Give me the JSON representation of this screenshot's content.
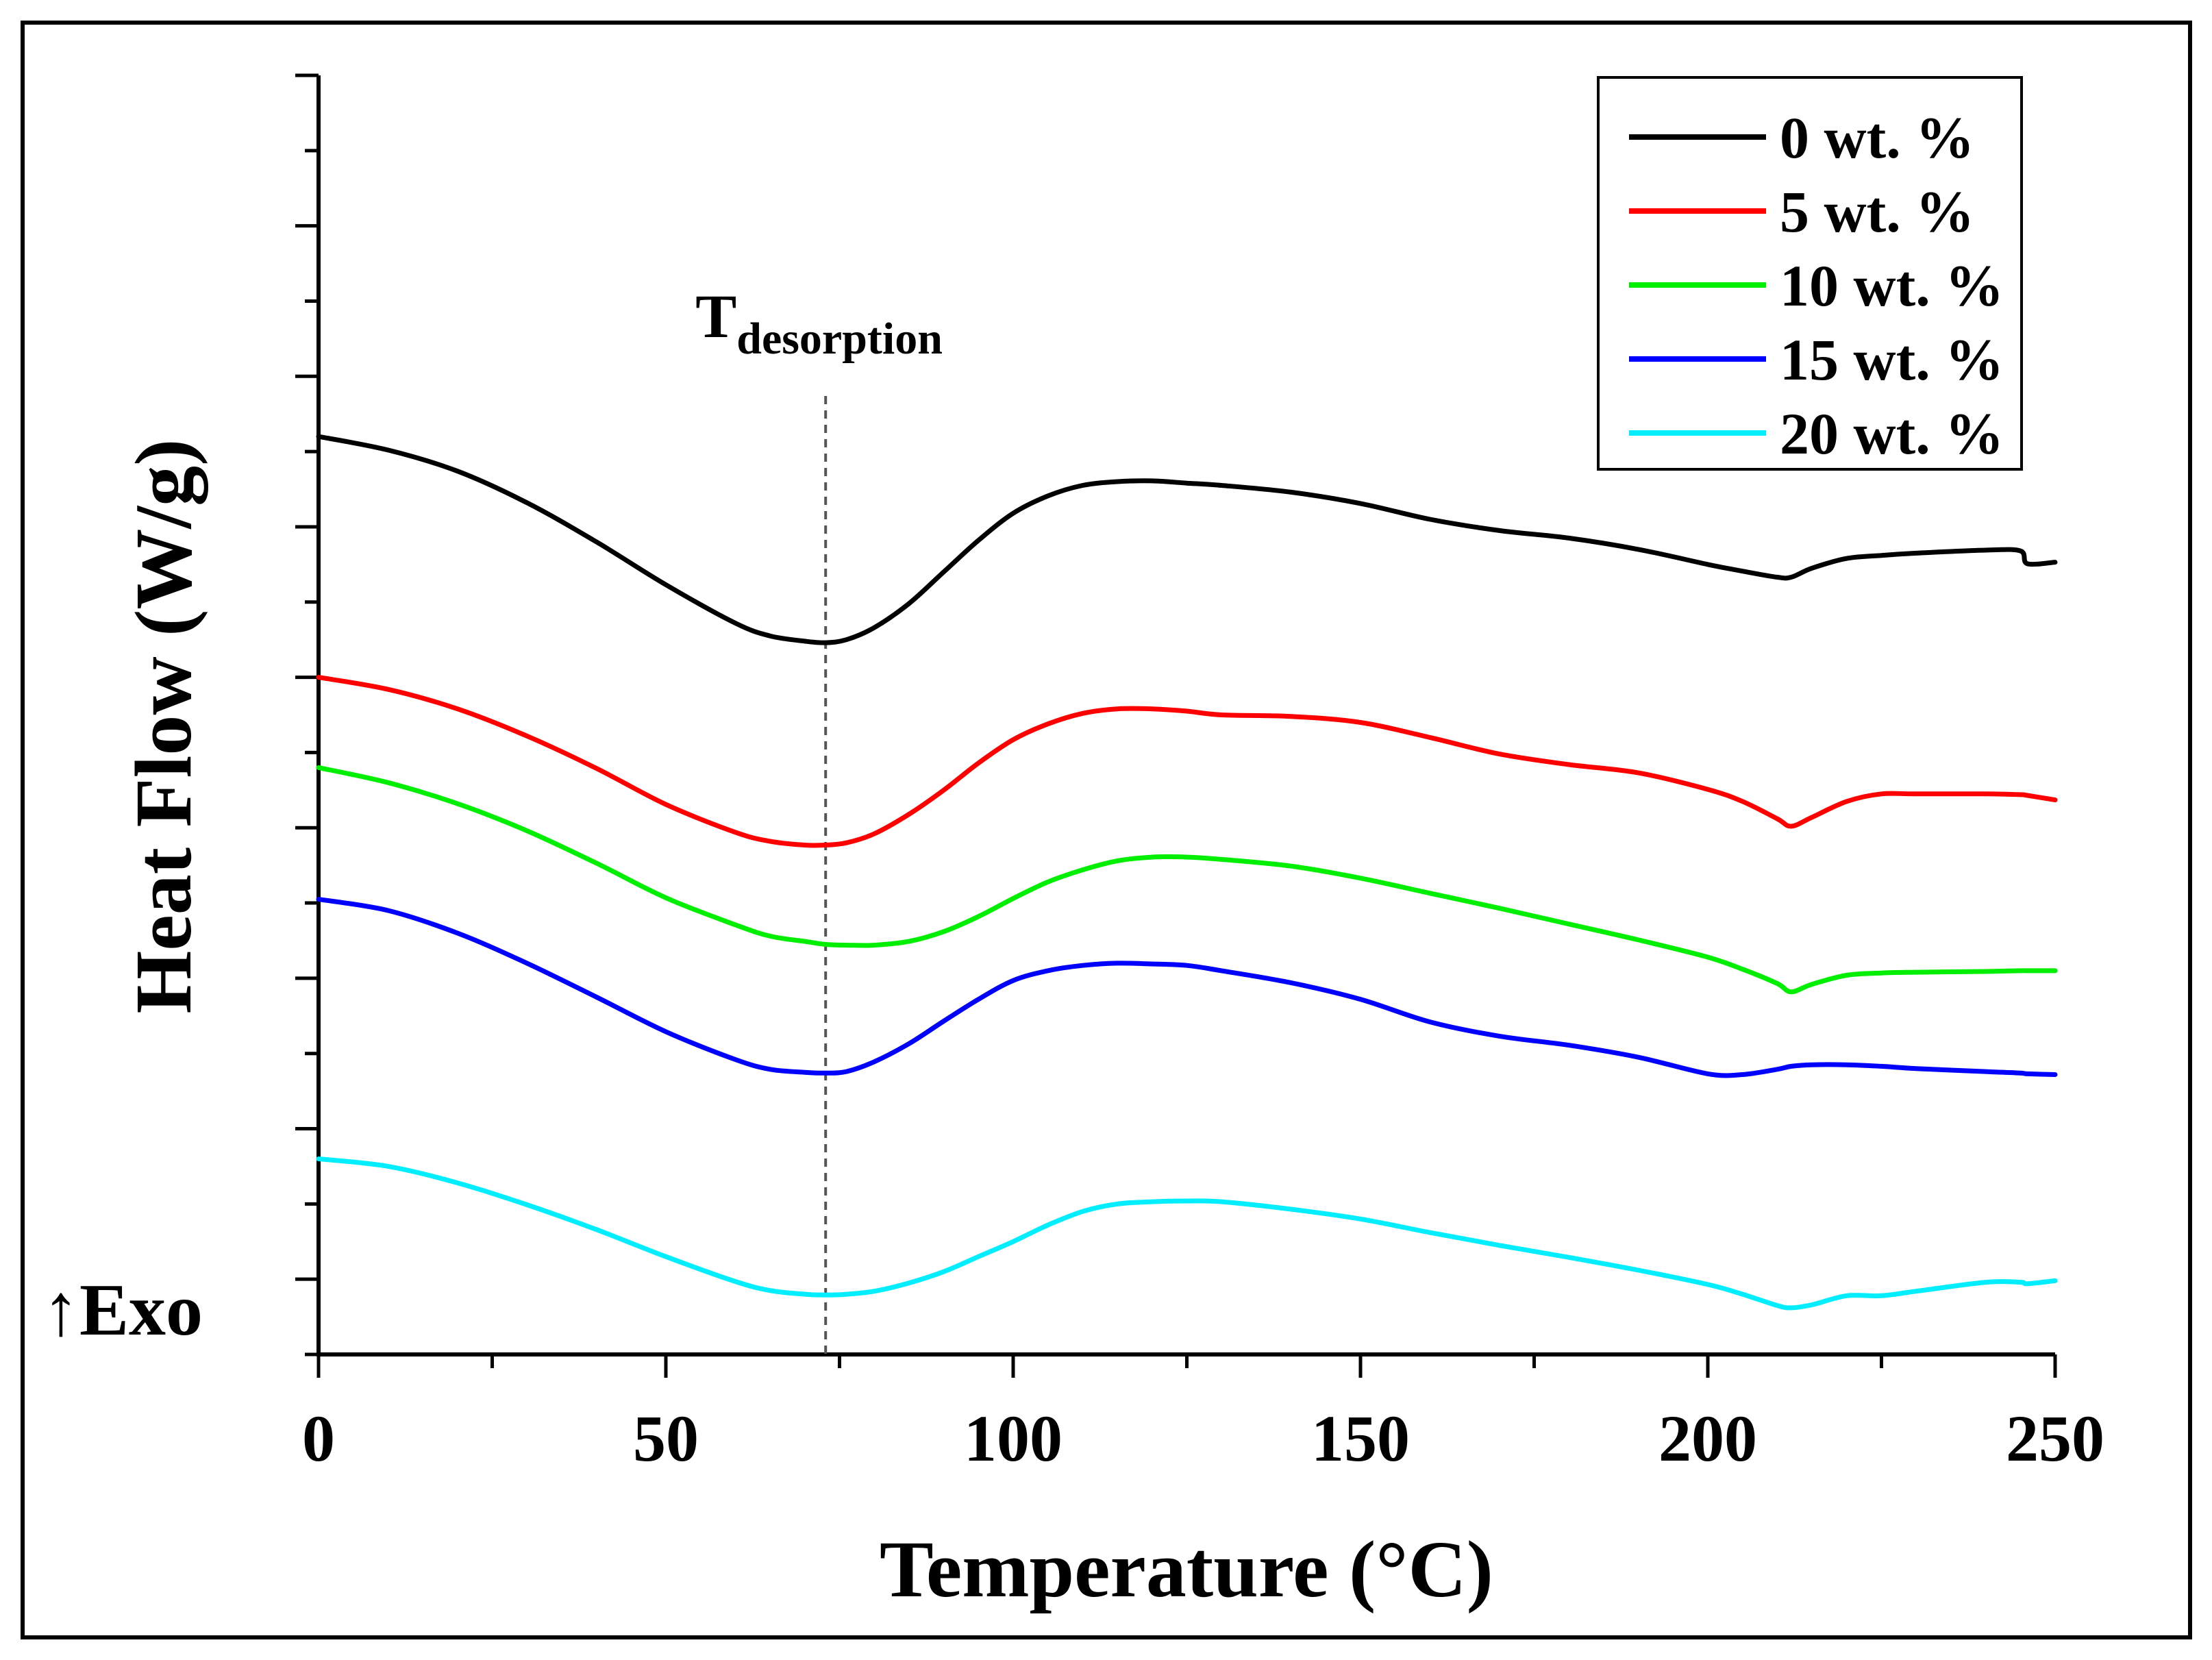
{
  "chart_data": {
    "type": "line",
    "title": "",
    "xlabel": "Temperature (°C)",
    "ylabel": "Heat Flow (W/g)",
    "exo_label": "↑Exo",
    "xlim": [
      0,
      250
    ],
    "x_ticks": [
      0,
      50,
      100,
      150,
      200,
      250
    ],
    "y_tick_labels": "none",
    "y_scale": "arbitrary units (curves vertically offset)",
    "ylim": [
      0,
      17
    ],
    "grid": false,
    "legend_position": "top-right",
    "annotation": {
      "text_main": "T",
      "text_sub": "desorption",
      "x": 73,
      "style": "dashed vertical line"
    },
    "x": [
      0,
      10,
      20,
      30,
      40,
      50,
      60,
      65,
      70,
      73,
      76,
      80,
      85,
      90,
      95,
      100,
      105,
      110,
      115,
      120,
      125,
      130,
      140,
      150,
      160,
      170,
      180,
      190,
      200,
      205,
      210,
      212,
      215,
      220,
      225,
      230,
      240,
      245,
      246,
      250
    ],
    "series": [
      {
        "name": "0 wt. %",
        "color": "#000000",
        "values": [
          12.2,
          12.02,
          11.74,
          11.32,
          10.8,
          10.23,
          9.72,
          9.55,
          9.48,
          9.46,
          9.5,
          9.66,
          9.98,
          10.4,
          10.82,
          11.18,
          11.41,
          11.55,
          11.6,
          11.61,
          11.58,
          11.55,
          11.46,
          11.31,
          11.1,
          10.95,
          10.85,
          10.7,
          10.5,
          10.41,
          10.33,
          10.33,
          10.45,
          10.58,
          10.62,
          10.65,
          10.69,
          10.68,
          10.51,
          10.53
        ]
      },
      {
        "name": "5 wt. %",
        "color": "#ff0000",
        "values": [
          9.0,
          8.84,
          8.58,
          8.22,
          7.79,
          7.31,
          6.94,
          6.82,
          6.77,
          6.77,
          6.8,
          6.92,
          7.18,
          7.5,
          7.86,
          8.17,
          8.38,
          8.52,
          8.58,
          8.58,
          8.55,
          8.5,
          8.48,
          8.4,
          8.2,
          7.98,
          7.84,
          7.73,
          7.51,
          7.35,
          7.12,
          7.02,
          7.14,
          7.35,
          7.45,
          7.45,
          7.45,
          7.44,
          7.43,
          7.37
        ]
      },
      {
        "name": "10 wt. %",
        "color": "#00ee00",
        "values": [
          7.8,
          7.6,
          7.32,
          6.96,
          6.53,
          6.07,
          5.71,
          5.56,
          5.49,
          5.45,
          5.44,
          5.44,
          5.49,
          5.62,
          5.82,
          6.06,
          6.28,
          6.44,
          6.56,
          6.61,
          6.61,
          6.58,
          6.49,
          6.33,
          6.13,
          5.93,
          5.72,
          5.51,
          5.28,
          5.12,
          4.93,
          4.82,
          4.92,
          5.04,
          5.07,
          5.08,
          5.09,
          5.1,
          5.1,
          5.1
        ]
      },
      {
        "name": "15 wt. %",
        "color": "#0000ff",
        "values": [
          6.05,
          5.9,
          5.6,
          5.2,
          4.75,
          4.29,
          3.92,
          3.79,
          3.75,
          3.74,
          3.76,
          3.89,
          4.13,
          4.43,
          4.72,
          4.97,
          5.1,
          5.17,
          5.2,
          5.19,
          5.17,
          5.1,
          4.94,
          4.72,
          4.42,
          4.23,
          4.11,
          3.95,
          3.73,
          3.72,
          3.79,
          3.83,
          3.85,
          3.85,
          3.83,
          3.8,
          3.76,
          3.74,
          3.73,
          3.72
        ]
      },
      {
        "name": "20 wt. %",
        "color": "#00eeff",
        "values": [
          2.6,
          2.5,
          2.28,
          1.99,
          1.66,
          1.3,
          0.97,
          0.85,
          0.8,
          0.79,
          0.8,
          0.84,
          0.95,
          1.1,
          1.3,
          1.5,
          1.72,
          1.9,
          2.0,
          2.03,
          2.04,
          2.03,
          1.93,
          1.8,
          1.62,
          1.45,
          1.29,
          1.12,
          0.93,
          0.8,
          0.65,
          0.62,
          0.66,
          0.78,
          0.78,
          0.84,
          0.96,
          0.96,
          0.94,
          0.98
        ]
      }
    ]
  }
}
